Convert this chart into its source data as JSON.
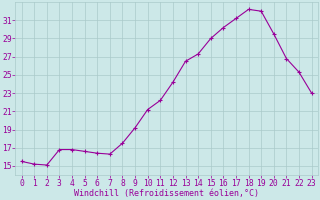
{
  "x": [
    0,
    1,
    2,
    3,
    4,
    5,
    6,
    7,
    8,
    9,
    10,
    11,
    12,
    13,
    14,
    15,
    16,
    17,
    18,
    19,
    20,
    21,
    22,
    23
  ],
  "y": [
    15.5,
    15.2,
    15.1,
    16.8,
    16.8,
    16.6,
    16.4,
    16.3,
    17.5,
    19.2,
    21.2,
    22.2,
    24.2,
    26.5,
    27.3,
    29.0,
    30.2,
    31.2,
    32.2,
    32.0,
    29.5,
    26.8,
    25.3,
    23.0
  ],
  "line_color": "#990099",
  "marker": "+",
  "marker_size": 3.5,
  "xlabel": "Windchill (Refroidissement éolien,°C)",
  "xlim": [
    -0.5,
    23.5
  ],
  "ylim": [
    14,
    33
  ],
  "yticks": [
    15,
    17,
    19,
    21,
    23,
    25,
    27,
    29,
    31
  ],
  "xticks": [
    0,
    1,
    2,
    3,
    4,
    5,
    6,
    7,
    8,
    9,
    10,
    11,
    12,
    13,
    14,
    15,
    16,
    17,
    18,
    19,
    20,
    21,
    22,
    23
  ],
  "bg_color": "#cce8e8",
  "grid_color": "#aacaca",
  "xlabel_color": "#990099",
  "tick_color": "#990099",
  "xlabel_fontsize": 6.0,
  "tick_fontsize": 5.8,
  "linewidth": 0.8,
  "markeredgewidth": 0.8
}
